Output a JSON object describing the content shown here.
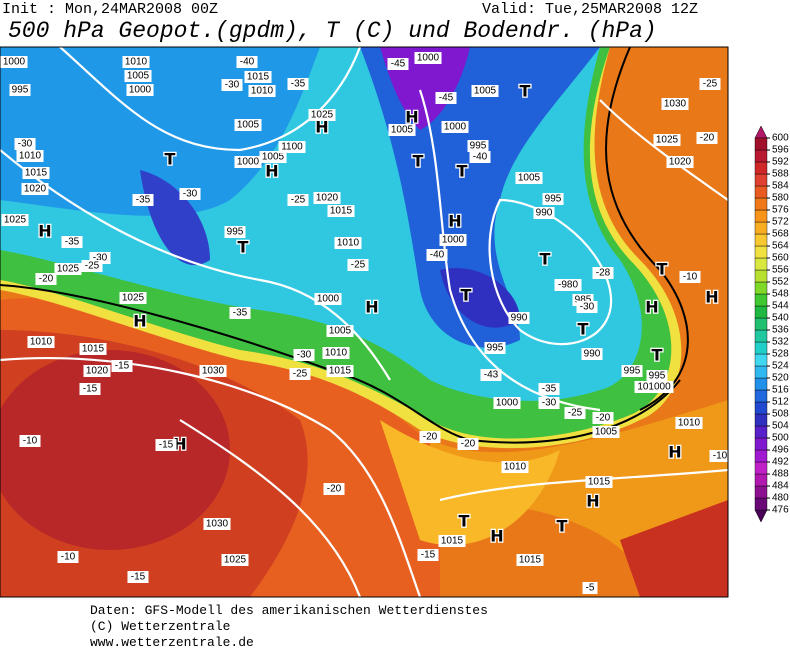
{
  "header": {
    "init": "Init : Mon,24MAR2008 00Z",
    "valid": "Valid: Tue,25MAR2008 12Z",
    "title": "500 hPa Geopot.(gpdm), T (C) und Bodendr. (hPa)"
  },
  "colorbar": {
    "ticks": [
      476,
      480,
      484,
      488,
      492,
      496,
      500,
      504,
      508,
      512,
      516,
      520,
      524,
      528,
      532,
      536,
      540,
      544,
      548,
      552,
      556,
      560,
      564,
      568,
      572,
      576,
      580,
      584,
      588,
      592,
      596,
      600
    ],
    "colors": [
      "#4a0058",
      "#6a0878",
      "#8c1090",
      "#b018b0",
      "#c020c8",
      "#a018d0",
      "#8018d0",
      "#5820c8",
      "#3030c0",
      "#2048d0",
      "#2068e0",
      "#2090e8",
      "#30b8f0",
      "#40d8f0",
      "#20d0c8",
      "#20c8a0",
      "#20c070",
      "#20b840",
      "#40c830",
      "#80d828",
      "#b8e030",
      "#d8e840",
      "#f0e040",
      "#f8c830",
      "#f8ac20",
      "#f89418",
      "#f07818",
      "#e85a20",
      "#e04030",
      "#d02828",
      "#b81830",
      "#a0102a",
      "#b0186a"
    ]
  },
  "map": {
    "labels": [
      "H",
      "H",
      "H",
      "T",
      "H",
      "T",
      "H",
      "H",
      "H",
      "T",
      "H",
      "T",
      "T",
      "T",
      "H",
      "T",
      "T",
      "H",
      "T",
      "H",
      "T",
      "H",
      "T",
      "H",
      "T",
      "1000",
      "995",
      "1010",
      "1005",
      "1000",
      "1015",
      "1010",
      "-40",
      "-30",
      "-35",
      "1025",
      "1005",
      "1000",
      "1005",
      "1100",
      "-45",
      "1000",
      "-45",
      "1005",
      "1000",
      "995",
      "-40",
      "1005",
      "-30",
      "1010",
      "1015",
      "1020",
      "1025",
      "-35",
      "-35",
      "-30",
      "1025",
      "-25",
      "-20",
      "1025",
      "-30",
      "995",
      "-25",
      "1020",
      "1015",
      "1010",
      "-25",
      "1000",
      "1005",
      "-35",
      "-30",
      "1010",
      "1015",
      "-25",
      "-40",
      "1000",
      "1005",
      "995",
      "990",
      "-28",
      "-980",
      "985",
      "-30",
      "990",
      "995",
      "990",
      "995",
      "101000",
      "995",
      "-35",
      "-30",
      "-25",
      "-20",
      "1005",
      "1000",
      "-43",
      "-20",
      "-20",
      "1010",
      "1010",
      "-10",
      "-25",
      "1030",
      "1025",
      "-20",
      "1020",
      "-10",
      "1010",
      "1015",
      "1020",
      "-15",
      "-15",
      "1030",
      "-10",
      "-15",
      "-20",
      "1030",
      "1025",
      "1015",
      "1015",
      "-15",
      "-10",
      "-15",
      "1015",
      "-5"
    ]
  },
  "footer": {
    "lines": [
      "Daten: GFS-Modell des amerikanischen Wetterdienstes",
      "(C) Wetterzentrale",
      "www.wetterzentrale.de"
    ]
  }
}
